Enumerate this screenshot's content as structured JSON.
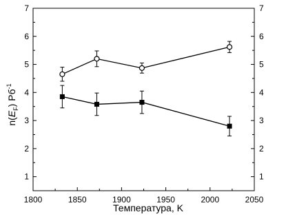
{
  "chart_data": {
    "type": "line",
    "xlabel": "Температура, K",
    "ylabel_parts": {
      "prefix": "n(",
      "var": "E",
      "sub": "F",
      "mid": ")  Рб",
      "sup": "-1"
    },
    "xlim": [
      1800,
      2050
    ],
    "ylim": [
      0.5,
      7
    ],
    "xticks": [
      1800,
      1850,
      1900,
      1950,
      2000,
      2050
    ],
    "yticks": [
      1,
      2,
      3,
      4,
      5,
      6,
      7
    ],
    "right_axis_ticks": [
      1,
      2,
      3,
      4,
      5,
      6,
      7
    ],
    "series": [
      {
        "marker": "open-circle",
        "x": [
          1833,
          1872,
          1923,
          2022
        ],
        "y": [
          4.65,
          5.2,
          4.87,
          5.62
        ],
        "err": [
          0.25,
          0.28,
          0.18,
          0.2
        ]
      },
      {
        "marker": "filled-square",
        "x": [
          1833,
          1872,
          1923,
          2022
        ],
        "y": [
          3.85,
          3.58,
          3.65,
          2.8
        ],
        "err": [
          0.4,
          0.4,
          0.4,
          0.35
        ]
      }
    ]
  }
}
